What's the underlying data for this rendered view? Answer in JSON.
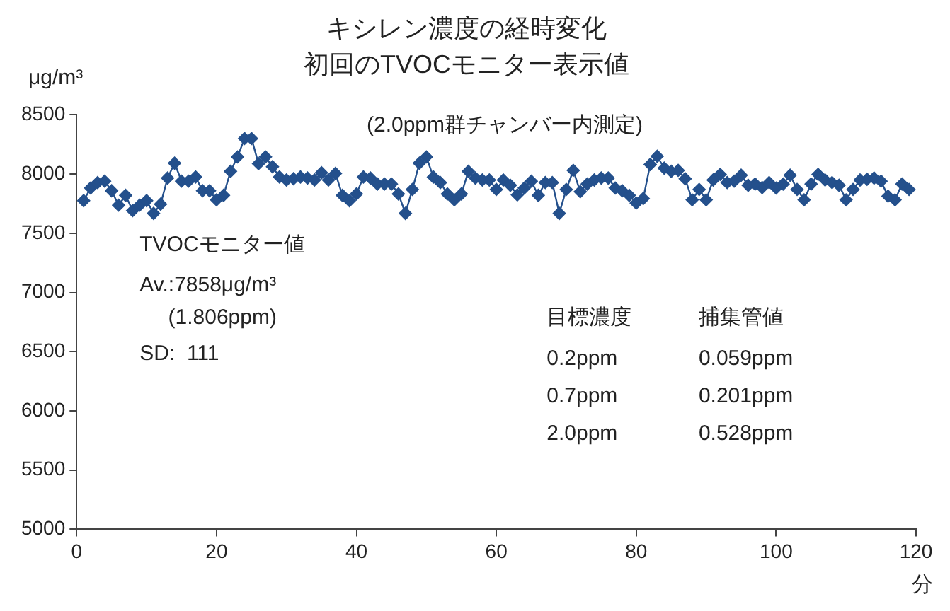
{
  "chart_data": {
    "type": "line",
    "title": "キシレン濃度の経時変化",
    "subtitle": "初回のTVOCモニター表示値",
    "ylabel": "μg/m³",
    "xlabel": "分",
    "x": [
      1,
      2,
      3,
      4,
      5,
      6,
      7,
      8,
      9,
      10,
      11,
      12,
      13,
      14,
      15,
      16,
      17,
      18,
      19,
      20,
      21,
      22,
      23,
      24,
      25,
      26,
      27,
      28,
      29,
      30,
      31,
      32,
      33,
      34,
      35,
      36,
      37,
      38,
      39,
      40,
      41,
      42,
      43,
      44,
      45,
      46,
      47,
      48,
      49,
      50,
      51,
      52,
      53,
      54,
      55,
      56,
      57,
      58,
      59,
      60,
      61,
      62,
      63,
      64,
      65,
      66,
      67,
      68,
      69,
      70,
      71,
      72,
      73,
      74,
      75,
      76,
      77,
      78,
      79,
      80,
      81,
      82,
      83,
      84,
      85,
      86,
      87,
      88,
      89,
      90,
      91,
      92,
      93,
      94,
      95,
      96,
      97,
      98,
      99,
      100,
      101,
      102,
      103,
      104,
      105,
      106,
      107,
      108,
      109,
      110,
      111,
      112,
      113,
      114,
      115,
      116,
      117,
      118,
      119
    ],
    "series": [
      {
        "color": "#24508c",
        "values": [
          7775,
          7882,
          7928,
          7940,
          7859,
          7737,
          7820,
          7691,
          7737,
          7775,
          7668,
          7745,
          7966,
          8092,
          7940,
          7940,
          7975,
          7859,
          7859,
          7782,
          7820,
          8023,
          8145,
          8300,
          8300,
          8088,
          8145,
          8062,
          7975,
          7950,
          7960,
          7975,
          7966,
          7950,
          8011,
          7950,
          8005,
          7820,
          7775,
          7832,
          7975,
          7966,
          7916,
          7916,
          7916,
          7832,
          7668,
          7870,
          8092,
          8145,
          7975,
          7928,
          7832,
          7782,
          7832,
          8023,
          7966,
          7950,
          7950,
          7870,
          7950,
          7905,
          7824,
          7882,
          7940,
          7820,
          7928,
          7928,
          7668,
          7870,
          8031,
          7851,
          7916,
          7950,
          7966,
          7966,
          7882,
          7859,
          7820,
          7755,
          7793,
          8081,
          8150,
          8050,
          8023,
          8031,
          7960,
          7782,
          7870,
          7782,
          7950,
          7997,
          7928,
          7940,
          7990,
          7905,
          7916,
          7886,
          7928,
          7882,
          7916,
          7990,
          7870,
          7782,
          7916,
          7997,
          7950,
          7928,
          7905,
          7782,
          7870,
          7950,
          7956,
          7966,
          7940,
          7813,
          7782,
          7916,
          7870
        ]
      }
    ],
    "xlim": [
      0,
      120
    ],
    "xticks": [
      0,
      20,
      40,
      60,
      80,
      100,
      120
    ],
    "ylim": [
      5000,
      8500
    ],
    "yticks": [
      5000,
      5500,
      6000,
      6500,
      7000,
      7500,
      8000,
      8500
    ],
    "grid": false,
    "legend": false,
    "marker": "diamond",
    "line_style": "solid",
    "annotations": [
      "(2.0ppm群チャンバー内測定)",
      "TVOCモニター値",
      "Av.:7858μg/m³",
      "(1.806ppm)",
      "SD:  111",
      "目標濃度",
      "捕集管値",
      "0.2ppm",
      "0.059ppm",
      "0.7ppm",
      "0.201ppm",
      "2.0ppm",
      "0.528ppm"
    ]
  }
}
